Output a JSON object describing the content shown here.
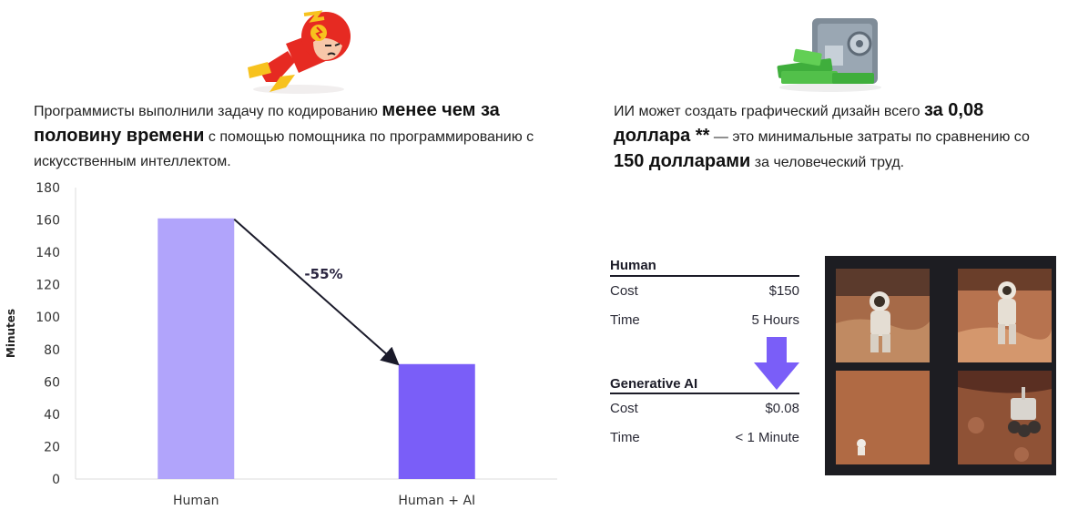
{
  "left_caption": {
    "part1": "Программисты выполнили задачу по кодированию ",
    "bold1": "менее чем за половину времени",
    "part2": " с помощью помощника по программированию с искусственным интеллектом."
  },
  "right_caption": {
    "part1": "ИИ может создать графический дизайн всего ",
    "bold1": "за 0,08 доллара **",
    "part2": " — это минимальные затраты по сравнению со ",
    "bold2": "150 долларами",
    "part3": " за человеческий труд."
  },
  "chart_data": {
    "type": "bar",
    "categories": [
      "Human",
      "Human + AI"
    ],
    "values": [
      161,
      71
    ],
    "ylabel": "Minutes",
    "ylim": [
      0,
      180
    ],
    "yticks": [
      "0",
      "20",
      "40",
      "60",
      "80",
      "100",
      "120",
      "140",
      "160",
      "180"
    ],
    "annotation": "-55%",
    "grid": false,
    "colors": [
      "#b1a4fb",
      "#7a5ef8"
    ]
  },
  "comparison": {
    "human": {
      "title": "Human",
      "cost_label": "Cost",
      "cost_value": "$150",
      "time_label": "Time",
      "time_value": "5 Hours"
    },
    "ai": {
      "title": "Generative AI",
      "cost_label": "Cost",
      "cost_value": "$0.08",
      "time_label": "Time",
      "time_value": "< 1 Minute"
    },
    "arrow_color": "#7a5ef8"
  },
  "icons": {
    "left": "flash-hero-icon",
    "right": "safe-with-money-icon"
  }
}
